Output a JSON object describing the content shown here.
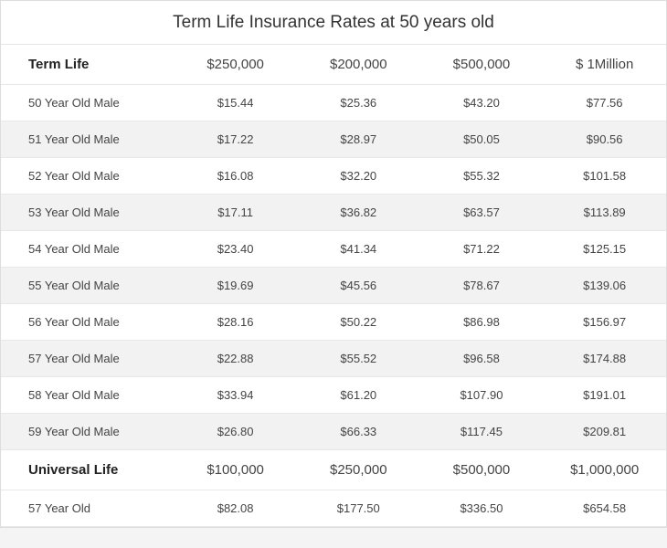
{
  "title": "Term Life Insurance Rates at 50 years old",
  "colors": {
    "background": "#f4f4f4",
    "container_bg": "#ffffff",
    "border": "#dddddd",
    "row_border": "#e8e8e8",
    "alt_row_bg": "#f2f2f2",
    "text": "#444444",
    "header_text": "#222222"
  },
  "typography": {
    "title_fontsize": 19,
    "header_fontsize": 15,
    "cell_fontsize": 13
  },
  "columns": {
    "widths_pct": [
      26,
      18.5,
      18.5,
      18.5,
      18.5
    ],
    "alignment": [
      "left",
      "center",
      "center",
      "center",
      "center"
    ]
  },
  "sections": [
    {
      "label": "Term Life",
      "headers": [
        "$250,000",
        "$200,000",
        "$500,000",
        "$ 1Million"
      ],
      "rows": [
        {
          "label": "50 Year Old Male",
          "cells": [
            "$15.44",
            "$25.36",
            "$43.20",
            "$77.56"
          ]
        },
        {
          "label": "51 Year Old Male",
          "cells": [
            "$17.22",
            "$28.97",
            "$50.05",
            "$90.56"
          ]
        },
        {
          "label": "52 Year Old Male",
          "cells": [
            "$16.08",
            "$32.20",
            "$55.32",
            "$101.58"
          ]
        },
        {
          "label": "53 Year Old Male",
          "cells": [
            "$17.11",
            "$36.82",
            "$63.57",
            "$113.89"
          ]
        },
        {
          "label": "54 Year Old Male",
          "cells": [
            "$23.40",
            "$41.34",
            "$71.22",
            "$125.15"
          ]
        },
        {
          "label": "55 Year Old Male",
          "cells": [
            "$19.69",
            "$45.56",
            "$78.67",
            "$139.06"
          ]
        },
        {
          "label": "56 Year Old Male",
          "cells": [
            "$28.16",
            "$50.22",
            "$86.98",
            "$156.97"
          ]
        },
        {
          "label": "57 Year Old Male",
          "cells": [
            "$22.88",
            "$55.52",
            "$96.58",
            "$174.88"
          ]
        },
        {
          "label": "58 Year Old Male",
          "cells": [
            "$33.94",
            "$61.20",
            "$107.90",
            "$191.01"
          ]
        },
        {
          "label": "59 Year Old Male",
          "cells": [
            "$26.80",
            "$66.33",
            "$117.45",
            "$209.81"
          ]
        }
      ]
    },
    {
      "label": "Universal Life",
      "headers": [
        "$100,000",
        "$250,000",
        "$500,000",
        "$1,000,000"
      ],
      "rows": [
        {
          "label": "57 Year Old",
          "cells": [
            "$82.08",
            "$177.50",
            "$336.50",
            "$654.58"
          ]
        }
      ]
    }
  ]
}
